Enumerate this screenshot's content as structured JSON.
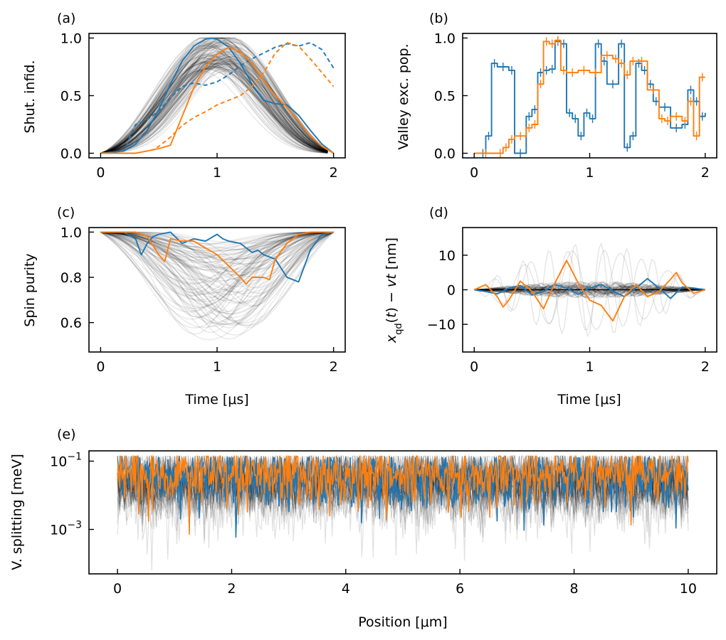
{
  "colors": {
    "blue": "#1f77b4",
    "orange": "#ff7f0e",
    "gray": "#000000"
  },
  "chart_data": [
    {
      "id": "a",
      "type": "line",
      "panel_label": "(a)",
      "xlabel": "",
      "ylabel": "Shut. infid.",
      "xlim": [
        -0.1,
        2.1
      ],
      "ylim": [
        -0.04,
        1.04
      ],
      "xticks": [
        0,
        1,
        2
      ],
      "xticklabels": [
        "0",
        "1",
        "2"
      ],
      "yticks": [
        0,
        0.5,
        1.0
      ],
      "yticklabels": [
        "0.0",
        "0.5",
        "1.0"
      ],
      "background_traces": 150,
      "series": [
        {
          "name": "blue solid",
          "color": "blue",
          "style": "solid",
          "x": [
            0,
            0.2,
            0.3,
            0.4,
            0.5,
            0.6,
            0.7,
            0.8,
            0.9,
            0.95,
            1.0,
            1.1,
            1.2,
            1.3,
            1.4,
            1.5,
            1.6,
            1.7,
            1.8,
            1.9,
            2.0
          ],
          "y": [
            0,
            0.02,
            0.08,
            0.2,
            0.38,
            0.6,
            0.8,
            0.93,
            0.99,
            1.0,
            0.99,
            0.92,
            0.78,
            0.6,
            0.46,
            0.43,
            0.42,
            0.33,
            0.2,
            0.08,
            0
          ]
        },
        {
          "name": "blue dashed",
          "color": "blue",
          "style": "dashed",
          "x": [
            0,
            0.2,
            0.3,
            0.4,
            0.5,
            0.6,
            0.7,
            0.8,
            0.9,
            1.0,
            1.1,
            1.2,
            1.3,
            1.4,
            1.5,
            1.6,
            1.7,
            1.8,
            1.9,
            2.0
          ],
          "y": [
            0,
            0.02,
            0.25,
            0.29,
            0.37,
            0.48,
            0.58,
            0.61,
            0.59,
            0.62,
            0.68,
            0.76,
            0.82,
            0.87,
            0.92,
            0.95,
            0.93,
            0.96,
            0.9,
            0.74
          ]
        },
        {
          "name": "orange solid",
          "color": "orange",
          "style": "solid",
          "x": [
            0,
            0.3,
            0.45,
            0.5,
            0.6,
            0.7,
            0.8,
            0.9,
            1.0,
            1.1,
            1.2,
            1.3,
            1.4,
            1.5,
            1.6,
            1.7,
            1.8,
            1.9,
            2.0
          ],
          "y": [
            0,
            0,
            0.03,
            0.04,
            0.07,
            0.32,
            0.57,
            0.75,
            0.86,
            0.92,
            0.88,
            0.78,
            0.63,
            0.5,
            0.4,
            0.28,
            0.15,
            0.06,
            0
          ]
        },
        {
          "name": "orange dashed",
          "color": "orange",
          "style": "dashed",
          "x": [
            0,
            0.3,
            0.45,
            0.5,
            0.6,
            0.7,
            0.8,
            0.9,
            1.0,
            1.1,
            1.2,
            1.3,
            1.4,
            1.5,
            1.6,
            1.7,
            1.8,
            1.9,
            2.0
          ],
          "y": [
            0,
            0,
            0.03,
            0.06,
            0.14,
            0.24,
            0.31,
            0.36,
            0.42,
            0.46,
            0.5,
            0.58,
            0.7,
            0.87,
            0.96,
            0.93,
            0.82,
            0.7,
            0.58
          ]
        }
      ]
    },
    {
      "id": "b",
      "type": "line",
      "panel_label": "(b)",
      "xlabel": "",
      "ylabel": "Valley exc. pop.",
      "xlim": [
        -0.1,
        2.1
      ],
      "ylim": [
        -0.04,
        1.04
      ],
      "xticks": [
        0,
        1,
        2
      ],
      "xticklabels": [
        "0",
        "1",
        "2"
      ],
      "yticks": [
        0,
        0.5,
        1.0
      ],
      "yticklabels": [
        "0.0",
        "0.5",
        "1.0"
      ],
      "background_traces": 0,
      "series": [
        {
          "name": "blue",
          "color": "blue",
          "style": "step",
          "x": [
            0.05,
            0.1,
            0.15,
            0.2,
            0.3,
            0.35,
            0.45,
            0.5,
            0.55,
            0.6,
            0.65,
            0.7,
            0.75,
            0.8,
            0.85,
            0.9,
            0.95,
            1.0,
            1.05,
            1.1,
            1.15,
            1.25,
            1.3,
            1.35,
            1.4,
            1.45,
            1.5,
            1.55,
            1.6,
            1.7,
            1.8,
            1.85,
            1.9,
            1.95,
            2.0
          ],
          "y": [
            0.0,
            0.15,
            0.78,
            0.75,
            0.72,
            0.0,
            0.32,
            0.38,
            0.7,
            0.72,
            0.73,
            0.97,
            0.95,
            0.35,
            0.3,
            0.15,
            0.35,
            0.3,
            0.95,
            0.8,
            0.6,
            0.95,
            0.05,
            0.15,
            0.78,
            0.72,
            0.6,
            0.45,
            0.4,
            0.22,
            0.25,
            0.55,
            0.45,
            0.32,
            0.35
          ]
        },
        {
          "name": "orange",
          "color": "orange",
          "style": "step",
          "x": [
            0,
            0.2,
            0.25,
            0.3,
            0.35,
            0.45,
            0.5,
            0.55,
            0.6,
            0.65,
            0.7,
            0.75,
            0.8,
            0.9,
            1.0,
            1.1,
            1.2,
            1.25,
            1.3,
            1.35,
            1.4,
            1.5,
            1.6,
            1.65,
            1.7,
            1.8,
            1.85,
            1.9,
            1.95,
            2.0
          ],
          "y": [
            0.0,
            0.0,
            0.05,
            0.12,
            0.15,
            0.22,
            0.25,
            0.6,
            0.97,
            0.95,
            0.98,
            0.72,
            0.7,
            0.72,
            0.7,
            0.85,
            0.82,
            0.78,
            0.68,
            0.8,
            0.8,
            0.55,
            0.3,
            0.28,
            0.32,
            0.28,
            0.45,
            0.15,
            0.66,
            0.66
          ]
        }
      ]
    },
    {
      "id": "c",
      "type": "line",
      "panel_label": "(c)",
      "xlabel": "Time [μs]",
      "ylabel": "Spin purity",
      "xlim": [
        -0.1,
        2.1
      ],
      "ylim": [
        0.47,
        1.02
      ],
      "xticks": [
        0,
        1,
        2
      ],
      "xticklabels": [
        "0",
        "1",
        "2"
      ],
      "yticks": [
        0.6,
        0.8,
        1.0
      ],
      "yticklabels": [
        "0.6",
        "0.8",
        "1.0"
      ],
      "background_traces": 100,
      "series": [
        {
          "name": "blue",
          "color": "blue",
          "style": "solid",
          "x": [
            0,
            0.2,
            0.3,
            0.35,
            0.4,
            0.45,
            0.5,
            0.6,
            0.7,
            0.8,
            0.9,
            1.0,
            1.05,
            1.1,
            1.2,
            1.3,
            1.35,
            1.4,
            1.5,
            1.6,
            1.7,
            1.8,
            1.9,
            2.0
          ],
          "y": [
            1.0,
            1.0,
            0.97,
            0.9,
            0.95,
            0.98,
            0.99,
            1.0,
            0.95,
            0.97,
            0.96,
            0.99,
            0.97,
            0.96,
            0.95,
            0.91,
            0.92,
            0.9,
            0.88,
            0.8,
            0.78,
            0.92,
            0.99,
            1.0
          ]
        },
        {
          "name": "orange",
          "color": "orange",
          "style": "solid",
          "x": [
            0,
            0.2,
            0.3,
            0.4,
            0.5,
            0.55,
            0.6,
            0.7,
            0.8,
            0.9,
            1.0,
            1.1,
            1.2,
            1.25,
            1.3,
            1.4,
            1.45,
            1.5,
            1.6,
            1.7,
            1.8,
            1.9,
            2.0
          ],
          "y": [
            1.0,
            1.0,
            1.0,
            0.98,
            0.9,
            0.87,
            0.97,
            0.96,
            0.96,
            0.93,
            0.9,
            0.85,
            0.8,
            0.77,
            0.8,
            0.8,
            0.79,
            0.88,
            0.95,
            0.99,
            1.0,
            1.0,
            1.0
          ]
        }
      ]
    },
    {
      "id": "d",
      "type": "line",
      "panel_label": "(d)",
      "xlabel": "Time [μs]",
      "ylabel": "x_qd(t) − vt [nm]",
      "xlim": [
        -0.1,
        2.1
      ],
      "ylim": [
        -18,
        18
      ],
      "xticks": [
        0,
        1,
        2
      ],
      "xticklabels": [
        "0",
        "1",
        "2"
      ],
      "yticks": [
        -10,
        0,
        10
      ],
      "yticklabels": [
        "−10",
        "0",
        "10"
      ],
      "background_traces": 60,
      "series": [
        {
          "name": "blue",
          "color": "blue",
          "style": "solid",
          "x": [
            0,
            0.1,
            0.2,
            0.3,
            0.4,
            0.5,
            0.6,
            0.7,
            0.8,
            0.9,
            1.0,
            1.1,
            1.2,
            1.3,
            1.4,
            1.5,
            1.6,
            1.7,
            1.8,
            1.9,
            2.0
          ],
          "y": [
            0,
            -0.5,
            -1.2,
            0.5,
            1.2,
            -1.5,
            -0.5,
            1.5,
            0.5,
            -1.3,
            0.5,
            1.5,
            -0.3,
            -2.0,
            0.5,
            3.2,
            0.5,
            -2.5,
            0.8,
            0.5,
            0
          ]
        },
        {
          "name": "orange",
          "color": "orange",
          "style": "solid",
          "x": [
            0,
            0.1,
            0.2,
            0.25,
            0.3,
            0.4,
            0.5,
            0.6,
            0.7,
            0.8,
            0.9,
            1.0,
            1.1,
            1.2,
            1.3,
            1.4,
            1.5,
            1.6,
            1.7,
            1.75,
            1.8,
            1.9,
            2.0
          ],
          "y": [
            0,
            1.5,
            -2.0,
            -5.0,
            -3.0,
            2.5,
            -0.5,
            -5.5,
            2.0,
            8.5,
            2.0,
            -3.0,
            -4.5,
            -9.0,
            -2.0,
            1.5,
            -2.0,
            -0.5,
            3.0,
            5.0,
            2.0,
            -1.0,
            0
          ]
        }
      ]
    },
    {
      "id": "e",
      "type": "line",
      "panel_label": "(e)",
      "xlabel": "Position [μm]",
      "ylabel": "V. splitting [meV]",
      "xscale": "linear",
      "yscale": "log",
      "xlim": [
        -0.5,
        10.5
      ],
      "ylim": [
        5e-05,
        0.2
      ],
      "xticks": [
        0,
        2,
        4,
        6,
        8,
        10
      ],
      "xticklabels": [
        "0",
        "2",
        "4",
        "6",
        "8",
        "10"
      ],
      "yticks": [
        0.001,
        0.1
      ],
      "ytick_base": "10",
      "ytick_exponents": [
        "−3",
        "−1"
      ],
      "background_traces": 40,
      "series": [
        {
          "name": "blue",
          "color": "blue",
          "style": "solid",
          "points": 700,
          "x_range": [
            0,
            10
          ],
          "log10_median": -1.5,
          "log10_spread": 0.45,
          "log10_max": -0.9,
          "log10_min": -3.4
        },
        {
          "name": "orange",
          "color": "orange",
          "style": "solid",
          "points": 700,
          "x_range": [
            0,
            10
          ],
          "log10_median": -1.4,
          "log10_spread": 0.4,
          "log10_max": -0.85,
          "log10_min": -3.2
        }
      ]
    }
  ]
}
